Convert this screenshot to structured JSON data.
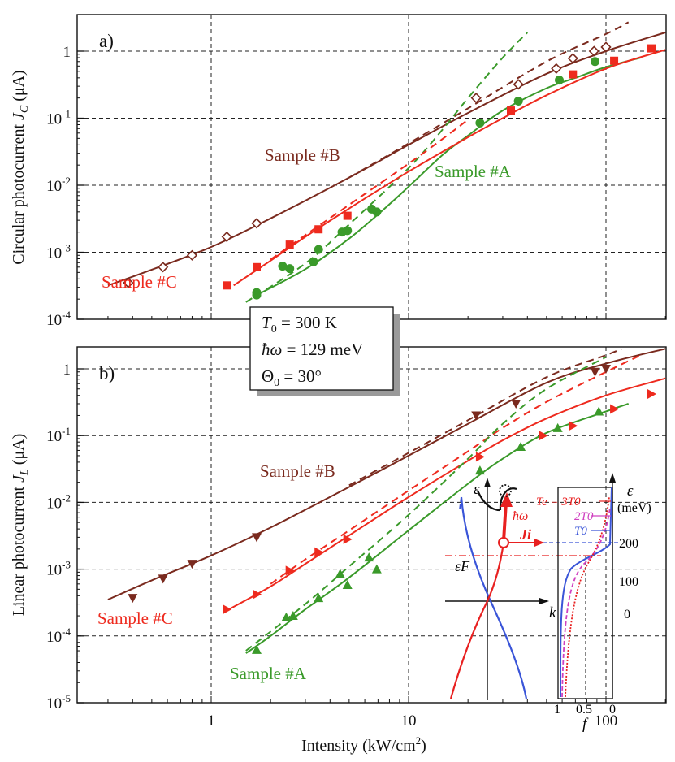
{
  "colors": {
    "sample_a": "#3a9a2a",
    "sample_b": "#7a2a1e",
    "sample_c": "#ee2a1e",
    "blue": "#3a55d8",
    "magenta": "#d040c0",
    "red": "#e82020"
  },
  "xlabel_prefix": "Intensity (kW/cm",
  "xlabel_sup": "2",
  "xlabel_suffix": ")",
  "x_ticks": [
    "1",
    "10",
    "100"
  ],
  "param_box": {
    "line1": "T0 = 300 K",
    "line2": "ħω = 129 meV",
    "line3": "Θ0 = 30°"
  },
  "chart_data": [
    {
      "type": "scatter",
      "panel": "a)",
      "ylabel": "Circular photocurrent J_C (μA)",
      "ylabel_main": "Circular photocurrent ",
      "ylabel_sym": "J",
      "ylabel_sub": "C",
      "ylabel_unit": " (μA)",
      "xscale": "log",
      "yscale": "log",
      "xlim": [
        0.2,
        200
      ],
      "ylim": [
        0.0001,
        3
      ],
      "y_ticks": [
        {
          "value": 1,
          "base": "1",
          "exp": ""
        },
        {
          "value": 0.1,
          "base": "10",
          "exp": "-1"
        },
        {
          "value": 0.01,
          "base": "10",
          "exp": "-2"
        },
        {
          "value": 0.001,
          "base": "10",
          "exp": "-3"
        },
        {
          "value": 0.0001,
          "base": "10",
          "exp": "-4"
        }
      ],
      "series": [
        {
          "name": "Sample #B",
          "color_key": "sample_b",
          "marker": "diamond-open",
          "x": [
            0.38,
            0.57,
            0.8,
            1.2,
            1.7,
            22,
            36,
            56,
            68,
            87,
            100
          ],
          "y": [
            0.00035,
            0.0006,
            0.0009,
            0.0017,
            0.0027,
            0.2,
            0.32,
            0.55,
            0.78,
            1.0,
            1.15
          ],
          "fit_solid": {
            "x": [
              0.3,
              0.5,
              1,
              2,
              5,
              10,
              20,
              50,
              100,
              200
            ],
            "y": [
              0.00032,
              0.00055,
              0.0012,
              0.0032,
              0.013,
              0.04,
              0.12,
              0.46,
              1.0,
              1.9
            ]
          },
          "fit_dashed": {
            "x": [
              5,
              10,
              20,
              50,
              100,
              130
            ],
            "y": [
              0.013,
              0.042,
              0.14,
              0.7,
              1.8,
              2.7
            ]
          }
        },
        {
          "name": "Sample #A",
          "color_key": "sample_a",
          "marker": "circle-filled",
          "x": [
            1.7,
            1.7,
            2.3,
            2.5,
            3.3,
            3.5,
            4.6,
            4.9,
            6.5,
            6.9,
            23,
            36,
            58,
            88
          ],
          "y": [
            0.00025,
            0.00023,
            0.00062,
            0.00057,
            0.00072,
            0.0011,
            0.002,
            0.0021,
            0.0044,
            0.004,
            0.085,
            0.18,
            0.37,
            0.7
          ],
          "fit_solid": {
            "x": [
              1.7,
              3,
              5,
              8,
              10,
              15,
              20,
              30,
              50,
              70,
              100,
              150
            ],
            "y": [
              0.00023,
              0.00056,
              0.0016,
              0.0052,
              0.0095,
              0.029,
              0.055,
              0.13,
              0.28,
              0.4,
              0.58,
              0.8
            ]
          },
          "fit_dashed": {
            "x": [
              1.5,
              3,
              5,
              10,
              15,
              20,
              30,
              40
            ],
            "y": [
              0.00018,
              0.00068,
              0.0026,
              0.018,
              0.07,
              0.2,
              0.8,
              1.9
            ]
          }
        },
        {
          "name": "Sample #C",
          "color_key": "sample_c",
          "marker": "square-filled",
          "x": [
            1.2,
            1.7,
            2.5,
            3.5,
            4.9,
            33,
            68,
            110,
            170
          ],
          "y": [
            0.00032,
            0.0006,
            0.0013,
            0.0022,
            0.0035,
            0.13,
            0.45,
            0.72,
            1.1
          ],
          "fit_solid": {
            "x": [
              1.3,
              2,
              3,
              5,
              10,
              20,
              30,
              50,
              100,
              200
            ],
            "y": [
              0.00032,
              0.00075,
              0.0017,
              0.0045,
              0.016,
              0.052,
              0.1,
              0.22,
              0.55,
              1.05
            ]
          },
          "fit_dashed": {
            "x": [
              2,
              3,
              5,
              10,
              15,
              20
            ],
            "y": [
              0.00078,
              0.0018,
              0.0051,
              0.021,
              0.05,
              0.095
            ]
          }
        }
      ]
    },
    {
      "type": "scatter",
      "panel": "b)",
      "ylabel": "Linear photocurrent J_L (μA)",
      "ylabel_main": "Linear photocurrent ",
      "ylabel_sym": "J",
      "ylabel_sub": "L",
      "ylabel_unit": " (μA)",
      "xscale": "log",
      "yscale": "log",
      "xlim": [
        0.2,
        200
      ],
      "ylim": [
        1e-05,
        2
      ],
      "y_ticks": [
        {
          "value": 1,
          "base": "1",
          "exp": ""
        },
        {
          "value": 0.1,
          "base": "10",
          "exp": "-1"
        },
        {
          "value": 0.01,
          "base": "10",
          "exp": "-2"
        },
        {
          "value": 0.001,
          "base": "10",
          "exp": "-3"
        },
        {
          "value": 0.0001,
          "base": "10",
          "exp": "-4"
        },
        {
          "value": 1e-05,
          "base": "10",
          "exp": "-5"
        }
      ],
      "series": [
        {
          "name": "Sample #B",
          "color_key": "sample_b",
          "marker": "triangle-down",
          "x": [
            0.4,
            0.57,
            0.8,
            1.7,
            22,
            35,
            88,
            100
          ],
          "y": [
            0.00037,
            0.00072,
            0.0012,
            0.003,
            0.2,
            0.3,
            0.9,
            1.0
          ],
          "fit_solid": {
            "x": [
              0.3,
              0.5,
              1,
              2,
              5,
              10,
              20,
              50,
              100,
              200
            ],
            "y": [
              0.00035,
              0.00068,
              0.0016,
              0.0042,
              0.017,
              0.05,
              0.15,
              0.62,
              1.2,
              2.0
            ]
          },
          "fit_dashed": {
            "x": [
              5,
              10,
              20,
              50,
              100,
              120
            ],
            "y": [
              0.018,
              0.055,
              0.17,
              0.75,
              1.6,
              2.0
            ]
          }
        },
        {
          "name": "Sample #C",
          "color_key": "sample_c",
          "marker": "triangle-right",
          "x": [
            1.2,
            1.7,
            2.5,
            3.5,
            4.9,
            23,
            48,
            68,
            110,
            170
          ],
          "y": [
            0.00025,
            0.00042,
            0.00095,
            0.0018,
            0.0028,
            0.048,
            0.1,
            0.14,
            0.25,
            0.42
          ],
          "fit_solid": {
            "x": [
              1.2,
              2,
              3,
              5,
              10,
              20,
              30,
              50,
              100,
              200
            ],
            "y": [
              0.00024,
              0.00055,
              0.0012,
              0.0032,
              0.012,
              0.042,
              0.085,
              0.18,
              0.4,
              0.72
            ]
          },
          "fit_dashed": {
            "x": [
              2,
              3,
              5,
              10,
              20,
              30,
              50,
              100,
              150
            ],
            "y": [
              0.0006,
              0.0014,
              0.0038,
              0.015,
              0.058,
              0.13,
              0.32,
              0.9,
              1.6
            ]
          }
        },
        {
          "name": "Sample #A",
          "color_key": "sample_a",
          "marker": "triangle-up",
          "x": [
            1.7,
            2.4,
            2.6,
            3.5,
            4.5,
            4.9,
            6.3,
            6.9,
            23,
            37,
            57,
            92
          ],
          "y": [
            6.2e-05,
            0.00019,
            0.0002,
            0.00037,
            0.00085,
            0.00058,
            0.0015,
            0.001,
            0.03,
            0.068,
            0.13,
            0.23
          ],
          "fit_solid": {
            "x": [
              1.5,
              2,
              3,
              5,
              10,
              20,
              30,
              50,
              100,
              130
            ],
            "y": [
              5.5e-05,
              0.0001,
              0.00025,
              0.00075,
              0.0038,
              0.019,
              0.045,
              0.11,
              0.23,
              0.3
            ]
          },
          "fit_dashed": {
            "x": [
              1.5,
              3,
              5,
              10,
              20,
              30,
              50,
              100
            ],
            "y": [
              6e-05,
              0.0003,
              0.0011,
              0.0065,
              0.045,
              0.15,
              0.5,
              1.5
            ]
          }
        }
      ]
    }
  ],
  "inset": {
    "epsilon_symbol": "ε",
    "k_label": "k",
    "ef_label": "εF",
    "hw_label": "ħω",
    "j_label": "Ji",
    "te_labels": [
      "Te = 3T0",
      "2T0",
      "T0"
    ],
    "right_axis_label": "ε",
    "right_axis_unit": "(meV)",
    "right_ticks": [
      "200",
      "100",
      "0"
    ],
    "f_ticks": [
      "1",
      "0.5",
      "0"
    ],
    "f_label": "f"
  }
}
